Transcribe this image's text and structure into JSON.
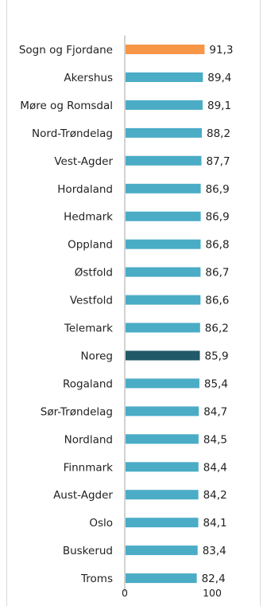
{
  "chart_data": {
    "type": "bar",
    "orientation": "horizontal",
    "title": "",
    "xlabel": "",
    "ylabel": "",
    "xlim": [
      0,
      100
    ],
    "x_ticks": [
      "0",
      "100"
    ],
    "grid": false,
    "legend": "none",
    "categories": [
      "Sogn og Fjordane",
      "Akershus",
      "Møre og Romsdal",
      "Nord-Trøndelag",
      "Vest-Agder",
      "Hordaland",
      "Hedmark",
      "Oppland",
      "Østfold",
      "Vestfold",
      "Telemark",
      "Noreg",
      "Rogaland",
      "Sør-Trøndelag",
      "Nordland",
      "Finnmark",
      "Aust-Agder",
      "Oslo",
      "Buskerud",
      "Troms"
    ],
    "values": [
      91.3,
      89.4,
      89.1,
      88.2,
      87.7,
      86.9,
      86.9,
      86.8,
      86.7,
      86.6,
      86.2,
      85.9,
      85.4,
      84.7,
      84.5,
      84.4,
      84.2,
      84.1,
      83.4,
      82.4
    ],
    "value_labels": [
      "91,3",
      "89,4",
      "89,1",
      "88,2",
      "87,7",
      "86,9",
      "86,9",
      "86,8",
      "86,7",
      "86,6",
      "86,2",
      "85,9",
      "85,4",
      "84,7",
      "84,5",
      "84,4",
      "84,2",
      "84,1",
      "83,4",
      "82,4"
    ],
    "colors": {
      "default": "#4bacc6",
      "highlight_sogn": "#f79646",
      "highlight_noreg": "#215968",
      "axis": "#a6a6a6"
    },
    "bar_color_keys": [
      "highlight_sogn",
      "default",
      "default",
      "default",
      "default",
      "default",
      "default",
      "default",
      "default",
      "default",
      "default",
      "highlight_noreg",
      "default",
      "default",
      "default",
      "default",
      "default",
      "default",
      "default",
      "default"
    ]
  }
}
